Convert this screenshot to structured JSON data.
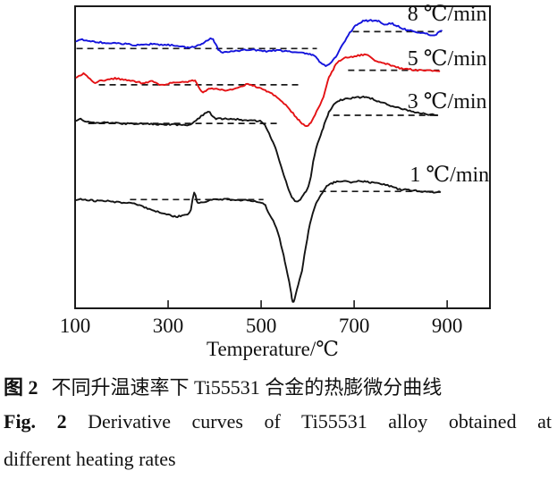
{
  "figure": {
    "caption_zh": {
      "label": "图 2",
      "text": "不同升温速率下 Ti55531 合金的热膨微分曲线"
    },
    "caption_en": {
      "label": "Fig. 2",
      "line1": "Derivative curves of Ti55531 alloy obtained at",
      "line2": "different heating rates"
    }
  },
  "chart_data": {
    "type": "line",
    "title": "",
    "xlabel": "Temperature/℃",
    "ylabel": "",
    "y_units": "arbitrary derivative units; v scale 0-100 spans plot bottom to top",
    "xlim": [
      100,
      992
    ],
    "xticks": [
      100,
      300,
      500,
      700,
      900
    ],
    "grid": false,
    "legend_position": "inline-right",
    "background": "#ffffff",
    "axis_color": "#1a1a1a",
    "series": [
      {
        "name": "8 ℃/min",
        "color": "#1414dc",
        "label_anchor": {
          "T": 900,
          "v": 97.6
        },
        "baselines": [
          {
            "v": 86.0,
            "from": 103,
            "to": 620
          },
          {
            "v": 91.6,
            "from": 697,
            "to": 888
          }
        ],
        "features": {
          "small_peak_T": 396,
          "valley_T": 635,
          "overshoot_peak_T": 740
        },
        "points": [
          [
            103,
            88.4
          ],
          [
            112,
            89.0
          ],
          [
            122,
            88.7
          ],
          [
            131,
            88.4
          ],
          [
            151,
            88.1
          ],
          [
            170,
            87.8
          ],
          [
            189,
            87.8
          ],
          [
            208,
            87.5
          ],
          [
            227,
            87.2
          ],
          [
            246,
            87.2
          ],
          [
            266,
            87.5
          ],
          [
            285,
            87.2
          ],
          [
            304,
            87.2
          ],
          [
            323,
            86.9
          ],
          [
            342,
            86.3
          ],
          [
            352,
            86.6
          ],
          [
            363,
            86.9
          ],
          [
            375,
            87.8
          ],
          [
            385,
            88.8
          ],
          [
            394,
            89.4
          ],
          [
            402,
            87.5
          ],
          [
            411,
            85.1
          ],
          [
            428,
            84.8
          ],
          [
            442,
            85.1
          ],
          [
            457,
            85.4
          ],
          [
            476,
            85.7
          ],
          [
            496,
            85.4
          ],
          [
            515,
            85.1
          ],
          [
            534,
            85.4
          ],
          [
            553,
            85.1
          ],
          [
            572,
            84.8
          ],
          [
            591,
            84.5
          ],
          [
            611,
            83.9
          ],
          [
            620,
            82.7
          ],
          [
            628,
            81.3
          ],
          [
            639,
            80.3
          ],
          [
            648,
            80.9
          ],
          [
            655,
            82.1
          ],
          [
            664,
            84.2
          ],
          [
            674,
            86.9
          ],
          [
            687,
            90.4
          ],
          [
            697,
            92.5
          ],
          [
            706,
            94.0
          ],
          [
            716,
            94.9
          ],
          [
            726,
            95.2
          ],
          [
            742,
            95.3
          ],
          [
            750,
            95.2
          ],
          [
            758,
            94.6
          ],
          [
            768,
            94.0
          ],
          [
            779,
            94.3
          ],
          [
            789,
            93.7
          ],
          [
            798,
            93.1
          ],
          [
            812,
            92.2
          ],
          [
            821,
            91.9
          ],
          [
            831,
            91.6
          ],
          [
            840,
            91.3
          ],
          [
            850,
            91.0
          ],
          [
            860,
            90.7
          ],
          [
            873,
            90.4
          ],
          [
            883,
            91.6
          ],
          [
            888,
            91.9
          ]
        ]
      },
      {
        "name": "5 ℃/min",
        "color": "#e41114",
        "label_anchor": {
          "T": 900,
          "v": 82.8
        },
        "baselines": [
          {
            "v": 74.0,
            "from": 151,
            "to": 586
          },
          {
            "v": 78.8,
            "from": 687,
            "to": 883
          }
        ],
        "features": {
          "small_peak_T": 358,
          "valley_T": 597,
          "overshoot_peak_T": 726
        },
        "points": [
          [
            103,
            76.4
          ],
          [
            112,
            77.3
          ],
          [
            122,
            77.6
          ],
          [
            140,
            74.9
          ],
          [
            160,
            75.5
          ],
          [
            189,
            76.1
          ],
          [
            208,
            75.5
          ],
          [
            227,
            75.2
          ],
          [
            246,
            74.6
          ],
          [
            266,
            75.2
          ],
          [
            285,
            73.9
          ],
          [
            304,
            74.6
          ],
          [
            323,
            74.9
          ],
          [
            342,
            75.0
          ],
          [
            358,
            75.2
          ],
          [
            372,
            71.6
          ],
          [
            384,
            72.4
          ],
          [
            398,
            72.8
          ],
          [
            419,
            72.2
          ],
          [
            438,
            72.5
          ],
          [
            457,
            73.4
          ],
          [
            471,
            74.3
          ],
          [
            482,
            73.7
          ],
          [
            496,
            73.1
          ],
          [
            509,
            72.2
          ],
          [
            534,
            69.9
          ],
          [
            553,
            67.2
          ],
          [
            572,
            63.9
          ],
          [
            584,
            61.8
          ],
          [
            591,
            60.9
          ],
          [
            599,
            60.6
          ],
          [
            607,
            61.5
          ],
          [
            616,
            64.2
          ],
          [
            634,
            70.1
          ],
          [
            643,
            75.2
          ],
          [
            655,
            79.1
          ],
          [
            664,
            81.2
          ],
          [
            678,
            82.7
          ],
          [
            697,
            83.3
          ],
          [
            712,
            83.7
          ],
          [
            726,
            83.9
          ],
          [
            745,
            82.1
          ],
          [
            764,
            81.2
          ],
          [
            783,
            80.3
          ],
          [
            802,
            79.4
          ],
          [
            821,
            79.1
          ],
          [
            840,
            78.8
          ],
          [
            860,
            78.8
          ],
          [
            883,
            78.5
          ]
        ]
      },
      {
        "name": "3 ℃/min",
        "color": "#141414",
        "label_anchor": {
          "T": 900,
          "v": 68.6
        },
        "baselines": [
          {
            "v": 61.2,
            "from": 128,
            "to": 537
          },
          {
            "v": 63.9,
            "from": 655,
            "to": 879
          }
        ],
        "features": {
          "small_peak_T": 386,
          "valley_T": 576,
          "overshoot_peak_T": 725
        },
        "points": [
          [
            103,
            62.1
          ],
          [
            112,
            62.7
          ],
          [
            122,
            61.8
          ],
          [
            140,
            61.5
          ],
          [
            170,
            61.5
          ],
          [
            198,
            61.2
          ],
          [
            227,
            61.2
          ],
          [
            246,
            61.2
          ],
          [
            275,
            60.9
          ],
          [
            304,
            60.9
          ],
          [
            333,
            60.6
          ],
          [
            352,
            61.2
          ],
          [
            371,
            63.6
          ],
          [
            386,
            65.1
          ],
          [
            400,
            63.0
          ],
          [
            413,
            62.7
          ],
          [
            438,
            62.7
          ],
          [
            457,
            62.4
          ],
          [
            482,
            62.1
          ],
          [
            501,
            61.8
          ],
          [
            511,
            59.7
          ],
          [
            520,
            56.7
          ],
          [
            528,
            54.3
          ],
          [
            536,
            50.7
          ],
          [
            543,
            46.9
          ],
          [
            551,
            43.0
          ],
          [
            559,
            39.4
          ],
          [
            566,
            36.7
          ],
          [
            576,
            35.5
          ],
          [
            584,
            36.1
          ],
          [
            591,
            37.6
          ],
          [
            599,
            39.4
          ],
          [
            607,
            43.6
          ],
          [
            612,
            48.4
          ],
          [
            618,
            52.8
          ],
          [
            628,
            57.3
          ],
          [
            636,
            60.9
          ],
          [
            643,
            63.9
          ],
          [
            651,
            66.3
          ],
          [
            659,
            67.8
          ],
          [
            668,
            68.7
          ],
          [
            678,
            69.3
          ],
          [
            697,
            69.6
          ],
          [
            716,
            69.9
          ],
          [
            729,
            69.9
          ],
          [
            749,
            68.7
          ],
          [
            764,
            68.1
          ],
          [
            783,
            66.9
          ],
          [
            812,
            65.7
          ],
          [
            837,
            64.8
          ],
          [
            860,
            64.2
          ],
          [
            879,
            63.9
          ]
        ]
      },
      {
        "name": "1 ℃/min",
        "color": "#141414",
        "label_anchor": {
          "T": 905,
          "v": 44.4
        },
        "baselines": [
          {
            "v": 36.0,
            "from": 218,
            "to": 505
          },
          {
            "v": 38.7,
            "from": 626,
            "to": 885
          }
        ],
        "features": {
          "small_peak_T": 356,
          "valley_T": 570,
          "overshoot_plateau_T": 690
        },
        "points": [
          [
            102,
            35.8
          ],
          [
            112,
            36.1
          ],
          [
            122,
            35.8
          ],
          [
            131,
            35.8
          ],
          [
            151,
            35.5
          ],
          [
            170,
            35.5
          ],
          [
            189,
            35.2
          ],
          [
            208,
            34.9
          ],
          [
            227,
            34.6
          ],
          [
            246,
            33.7
          ],
          [
            266,
            32.5
          ],
          [
            285,
            31.6
          ],
          [
            304,
            30.8
          ],
          [
            317,
            30.4
          ],
          [
            330,
            30.7
          ],
          [
            342,
            31.3
          ],
          [
            349,
            32.8
          ],
          [
            356,
            38.5
          ],
          [
            362,
            35.5
          ],
          [
            371,
            34.9
          ],
          [
            390,
            35.8
          ],
          [
            409,
            36.1
          ],
          [
            428,
            36.1
          ],
          [
            448,
            35.8
          ],
          [
            467,
            35.8
          ],
          [
            486,
            35.5
          ],
          [
            500,
            34.9
          ],
          [
            509,
            34.0
          ],
          [
            515,
            31.9
          ],
          [
            526,
            29.0
          ],
          [
            536,
            25.1
          ],
          [
            543,
            20.9
          ],
          [
            551,
            15.5
          ],
          [
            557,
            11.0
          ],
          [
            563,
            6.6
          ],
          [
            566,
            3.3
          ],
          [
            570,
            2.1
          ],
          [
            574,
            4.2
          ],
          [
            580,
            8.1
          ],
          [
            588,
            12.5
          ],
          [
            593,
            17.6
          ],
          [
            599,
            23.0
          ],
          [
            605,
            27.8
          ],
          [
            611,
            31.3
          ],
          [
            618,
            34.6
          ],
          [
            626,
            37.0
          ],
          [
            634,
            38.8
          ],
          [
            641,
            40.3
          ],
          [
            651,
            41.2
          ],
          [
            660,
            41.8
          ],
          [
            678,
            42.1
          ],
          [
            697,
            41.8
          ],
          [
            716,
            42.1
          ],
          [
            729,
            41.8
          ],
          [
            745,
            41.5
          ],
          [
            764,
            40.9
          ],
          [
            783,
            40.3
          ],
          [
            798,
            39.4
          ],
          [
            821,
            39.1
          ],
          [
            840,
            38.8
          ],
          [
            860,
            38.5
          ],
          [
            885,
            38.5
          ]
        ]
      }
    ]
  }
}
